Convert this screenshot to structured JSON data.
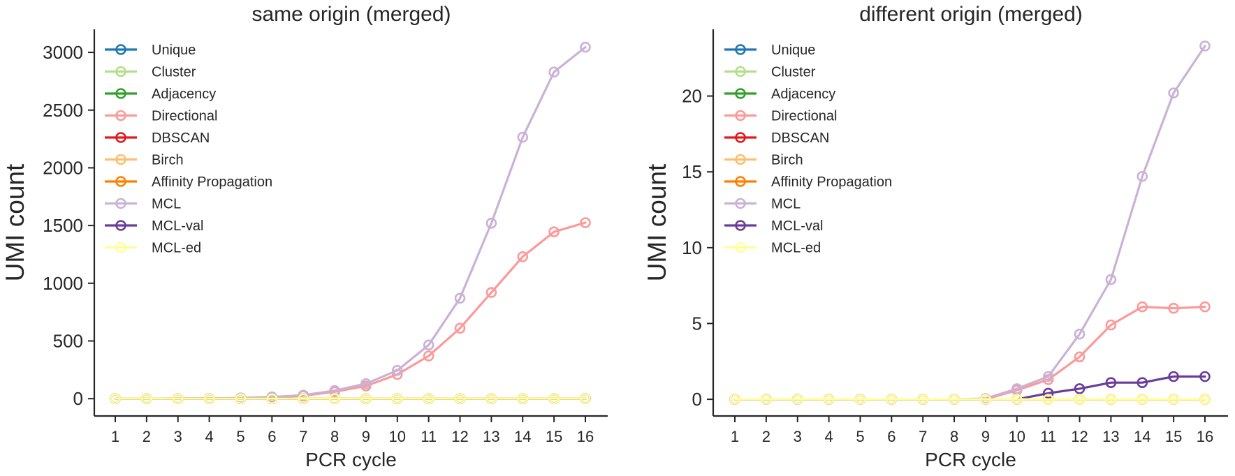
{
  "chart_data": [
    {
      "type": "line",
      "title": "same origin (merged)",
      "xlabel": "PCR cycle",
      "ylabel": "UMI count",
      "x": [
        1,
        2,
        3,
        4,
        5,
        6,
        7,
        8,
        9,
        10,
        11,
        12,
        13,
        14,
        15,
        16
      ],
      "ylim": [
        -150,
        3200
      ],
      "yticks": [
        0,
        500,
        1000,
        1500,
        2000,
        2500,
        3000
      ],
      "legend_position": "upper-left",
      "grid": false,
      "series": [
        {
          "name": "Unique",
          "color": "#1f78b4",
          "values": [
            0,
            0,
            0,
            0,
            0,
            0,
            0,
            0,
            0,
            0,
            0,
            0,
            0,
            0,
            0,
            0
          ]
        },
        {
          "name": "Cluster",
          "color": "#b2df8a",
          "values": [
            0,
            0,
            0,
            0,
            0,
            0,
            0,
            0,
            0,
            0,
            0,
            0,
            0,
            0,
            0,
            0
          ]
        },
        {
          "name": "Adjacency",
          "color": "#33a02c",
          "values": [
            0,
            0,
            0,
            0,
            0,
            0,
            0,
            0,
            0,
            0,
            0,
            0,
            0,
            0,
            0,
            0
          ]
        },
        {
          "name": "Directional",
          "color": "#fb9a99",
          "values": [
            0,
            0,
            1,
            2,
            5,
            12,
            25,
            60,
            110,
            210,
            370,
            610,
            920,
            1230,
            1445,
            1525
          ]
        },
        {
          "name": "DBSCAN",
          "color": "#e31a1c",
          "values": [
            0,
            0,
            0,
            0,
            0,
            0,
            0,
            0,
            0,
            0,
            0,
            0,
            0,
            0,
            0,
            0
          ]
        },
        {
          "name": "Birch",
          "color": "#fdbf6f",
          "values": [
            0,
            0,
            0,
            0,
            0,
            0,
            0,
            0,
            0,
            0,
            0,
            0,
            0,
            0,
            0,
            0
          ]
        },
        {
          "name": "Affinity Propagation",
          "color": "#ff7f00",
          "values": [
            0,
            0,
            0,
            0,
            0,
            0,
            0,
            0,
            0,
            0,
            0,
            0,
            0,
            0,
            0,
            0
          ]
        },
        {
          "name": "MCL",
          "color": "#cab2d6",
          "values": [
            0,
            0,
            1,
            2,
            6,
            15,
            30,
            70,
            130,
            245,
            465,
            870,
            1520,
            2265,
            2830,
            3045
          ]
        },
        {
          "name": "MCL-val",
          "color": "#6a3d9a",
          "values": [
            0,
            0,
            0,
            0,
            0,
            0,
            0,
            0,
            0,
            0,
            0,
            0,
            0,
            0,
            0,
            0
          ]
        },
        {
          "name": "MCL-ed",
          "color": "#ffff99",
          "values": [
            0,
            0,
            0,
            0,
            0,
            0,
            0,
            0,
            0,
            0,
            0,
            0,
            0,
            0,
            0,
            0
          ]
        }
      ]
    },
    {
      "type": "line",
      "title": "different origin (merged)",
      "xlabel": "PCR cycle",
      "ylabel": "UMI count",
      "x": [
        1,
        2,
        3,
        4,
        5,
        6,
        7,
        8,
        9,
        10,
        11,
        12,
        13,
        14,
        15,
        16
      ],
      "ylim": [
        -1.1,
        24.4
      ],
      "yticks": [
        0,
        5,
        10,
        15,
        20
      ],
      "legend_position": "upper-left",
      "grid": false,
      "series": [
        {
          "name": "Unique",
          "color": "#1f78b4",
          "values": [
            0,
            0,
            0,
            0,
            0,
            0,
            0,
            0,
            0,
            0,
            0,
            0,
            0,
            0,
            0,
            0
          ]
        },
        {
          "name": "Cluster",
          "color": "#b2df8a",
          "values": [
            0,
            0,
            0,
            0,
            0,
            0,
            0,
            0,
            0,
            0,
            0,
            0,
            0,
            0,
            0,
            0
          ]
        },
        {
          "name": "Adjacency",
          "color": "#33a02c",
          "values": [
            0,
            0,
            0,
            0,
            0,
            0,
            0,
            0,
            0,
            0,
            0,
            0,
            0,
            0,
            0,
            0
          ]
        },
        {
          "name": "Directional",
          "color": "#fb9a99",
          "values": [
            0,
            0,
            0,
            0,
            0,
            0,
            0,
            0,
            0,
            0.6,
            1.3,
            2.8,
            4.9,
            6.1,
            6.0,
            6.1
          ]
        },
        {
          "name": "DBSCAN",
          "color": "#e31a1c",
          "values": [
            0,
            0,
            0,
            0,
            0,
            0,
            0,
            0,
            0,
            0,
            0,
            0,
            0,
            0,
            0,
            0
          ]
        },
        {
          "name": "Birch",
          "color": "#fdbf6f",
          "values": [
            0,
            0,
            0,
            0,
            0,
            0,
            0,
            0,
            0,
            0,
            0,
            0,
            0,
            0,
            0,
            0
          ]
        },
        {
          "name": "Affinity Propagation",
          "color": "#ff7f00",
          "values": [
            0,
            0,
            0,
            0,
            0,
            0,
            0,
            0,
            0,
            0,
            0,
            0,
            0,
            0,
            0,
            0
          ]
        },
        {
          "name": "MCL",
          "color": "#cab2d6",
          "values": [
            0,
            0,
            0,
            0,
            0,
            0,
            0,
            0,
            0.05,
            0.7,
            1.5,
            4.3,
            7.9,
            14.7,
            20.2,
            23.3
          ]
        },
        {
          "name": "MCL-val",
          "color": "#6a3d9a",
          "values": [
            0,
            0,
            0,
            0,
            0,
            0,
            0,
            0,
            0,
            0,
            0.4,
            0.7,
            1.1,
            1.1,
            1.5,
            1.5
          ]
        },
        {
          "name": "MCL-ed",
          "color": "#ffff99",
          "values": [
            0,
            0,
            0,
            0,
            0,
            0,
            0,
            0,
            0,
            0,
            0,
            0,
            0,
            0,
            0,
            0
          ]
        }
      ]
    }
  ]
}
